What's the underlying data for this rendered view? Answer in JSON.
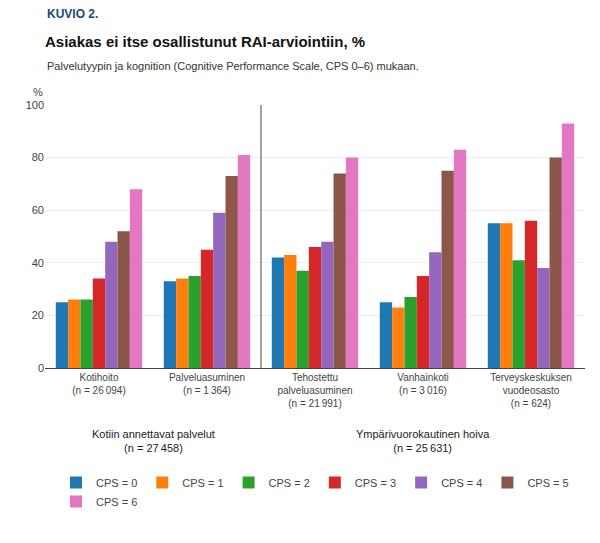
{
  "chart_data": {
    "type": "bar",
    "title": "Asiakas ei itse osallistunut RAI-arviointiin, %",
    "subtitle": "Palvelutyypin ja kognition (Cognitive Performance Scale, CPS 0–6) mukaan.",
    "ylabel": "%",
    "categories": [
      "Kotihoito\n(n = 26 094)",
      "Palveluasuminen\n(n = 1 364)",
      "Tehostettu\npalveluasuminen\n(n = 21 991)",
      "Vanhainkoti\n(n = 3 016)",
      "Terveyskeskuksen\nvuodeosasto\n(n = 624)"
    ],
    "series": [
      {
        "name": "CPS = 0",
        "values": [
          25,
          33,
          42,
          25,
          55
        ]
      },
      {
        "name": "CPS = 1",
        "values": [
          26,
          34,
          43,
          23,
          55
        ]
      },
      {
        "name": "CPS = 2",
        "values": [
          26,
          35,
          37,
          27,
          41
        ]
      },
      {
        "name": "CPS = 3",
        "values": [
          34,
          45,
          46,
          35,
          56
        ]
      },
      {
        "name": "CPS = 4",
        "values": [
          48,
          59,
          48,
          44,
          38
        ]
      },
      {
        "name": "CPS = 5",
        "values": [
          52,
          73,
          74,
          75,
          80
        ]
      },
      {
        "name": "CPS = 6",
        "values": [
          68,
          81,
          80,
          83,
          93
        ]
      }
    ],
    "ylim": [
      0,
      100
    ],
    "yticks": [
      0,
      20,
      40,
      60,
      80,
      100
    ],
    "grid": true,
    "legend": "bottom",
    "annotations": [
      {
        "text": "KUVIO 2."
      },
      {
        "text": "Kotiin annettavat palvelut\n(n = 27 458)",
        "x": [
          0,
          1
        ]
      },
      {
        "text": "Ympärivuorokautinen hoiva\n(n = 25 631)",
        "x": [
          2,
          3,
          4
        ]
      }
    ]
  }
}
